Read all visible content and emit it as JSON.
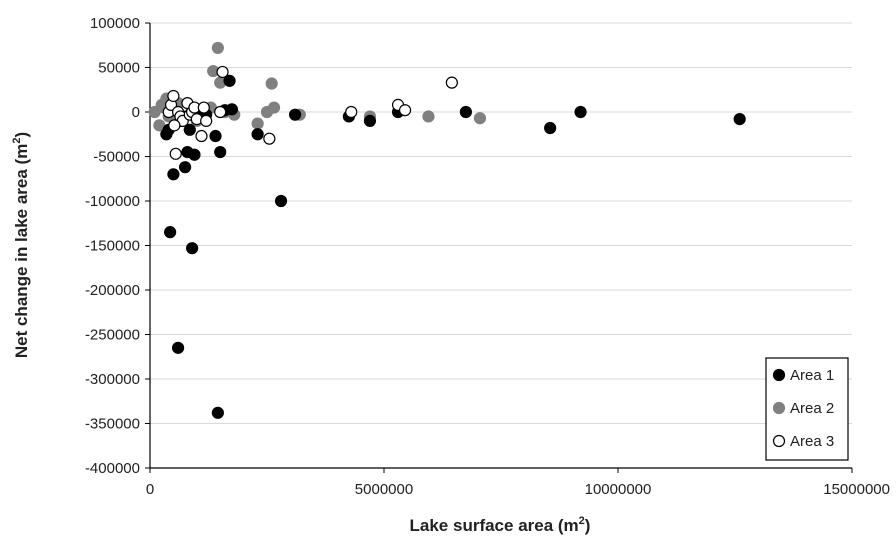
{
  "chart_data": {
    "type": "scatter",
    "title": "",
    "xlabel": "Lake surface area (m",
    "xlabel_sup": "2",
    "xlabel_suffix": ")",
    "ylabel": "Net change in lake area (m",
    "ylabel_sup": "2",
    "ylabel_suffix": ")",
    "xlim": [
      0,
      15000000
    ],
    "ylim": [
      -400000,
      100000
    ],
    "x_ticks": [
      0,
      5000000,
      10000000,
      15000000
    ],
    "x_tick_labels": [
      "0",
      "5000000",
      "10000000",
      "15000000"
    ],
    "y_ticks": [
      100000,
      50000,
      0,
      -50000,
      -100000,
      -150000,
      -200000,
      -250000,
      -300000,
      -350000,
      -400000
    ],
    "y_tick_labels": [
      "100000",
      "50000",
      "0",
      "-50000",
      "-100000",
      "-150000",
      "-200000",
      "-250000",
      "-300000",
      "-350000",
      "-400000"
    ],
    "grid": "horizontal",
    "legend_position": "bottom-right",
    "series": [
      {
        "name": "Area 1",
        "style": "filled",
        "color": "#000000",
        "points": [
          [
            400000,
            -20000
          ],
          [
            430000,
            -135000
          ],
          [
            500000,
            -70000
          ],
          [
            600000,
            -265000
          ],
          [
            700000,
            -5000
          ],
          [
            750000,
            -62000
          ],
          [
            800000,
            -45000
          ],
          [
            850000,
            -20000
          ],
          [
            900000,
            -153000
          ],
          [
            950000,
            -48000
          ],
          [
            1000000,
            -5000
          ],
          [
            1200000,
            -3000
          ],
          [
            1400000,
            -27000
          ],
          [
            1450000,
            -338000
          ],
          [
            1500000,
            -45000
          ],
          [
            1600000,
            2000
          ],
          [
            1700000,
            35000
          ],
          [
            1750000,
            3000
          ],
          [
            2300000,
            -25000
          ],
          [
            2800000,
            -100000
          ],
          [
            3100000,
            -3000
          ],
          [
            4250000,
            -5000
          ],
          [
            4700000,
            -10000
          ],
          [
            5300000,
            0
          ],
          [
            6750000,
            0
          ],
          [
            8550000,
            -18000
          ],
          [
            9200000,
            0
          ],
          [
            12600000,
            -8000
          ],
          [
            350000,
            -25000
          ],
          [
            650000,
            -10000
          ]
        ]
      },
      {
        "name": "Area 2",
        "style": "filled",
        "color": "#808080",
        "points": [
          [
            100000,
            0
          ],
          [
            200000,
            -15000
          ],
          [
            300000,
            5000
          ],
          [
            350000,
            15000
          ],
          [
            400000,
            -5000
          ],
          [
            500000,
            5000
          ],
          [
            700000,
            -5000
          ],
          [
            900000,
            2000
          ],
          [
            1000000,
            -10000
          ],
          [
            1200000,
            0
          ],
          [
            1300000,
            5000
          ],
          [
            1350000,
            46000
          ],
          [
            1450000,
            72000
          ],
          [
            1500000,
            33000
          ],
          [
            1600000,
            0
          ],
          [
            1800000,
            -3000
          ],
          [
            2300000,
            -13000
          ],
          [
            2500000,
            0
          ],
          [
            2600000,
            32000
          ],
          [
            2650000,
            5000
          ],
          [
            3200000,
            -3000
          ],
          [
            4700000,
            -5000
          ],
          [
            5950000,
            -5000
          ],
          [
            7050000,
            -7000
          ],
          [
            250000,
            8000
          ],
          [
            600000,
            10000
          ]
        ]
      },
      {
        "name": "Area 3",
        "style": "hollow",
        "color": "#000000",
        "points": [
          [
            400000,
            0
          ],
          [
            450000,
            8000
          ],
          [
            500000,
            18000
          ],
          [
            550000,
            -47000
          ],
          [
            600000,
            0
          ],
          [
            650000,
            -5000
          ],
          [
            700000,
            -10000
          ],
          [
            800000,
            10000
          ],
          [
            850000,
            -3000
          ],
          [
            900000,
            0
          ],
          [
            950000,
            5000
          ],
          [
            1000000,
            -8000
          ],
          [
            1100000,
            -27000
          ],
          [
            1150000,
            5000
          ],
          [
            1200000,
            -10000
          ],
          [
            1500000,
            0
          ],
          [
            1550000,
            45000
          ],
          [
            2550000,
            -30000
          ],
          [
            4300000,
            0
          ],
          [
            5300000,
            8000
          ],
          [
            5450000,
            2000
          ],
          [
            6450000,
            33000
          ],
          [
            520000,
            -15000
          ]
        ]
      }
    ]
  }
}
